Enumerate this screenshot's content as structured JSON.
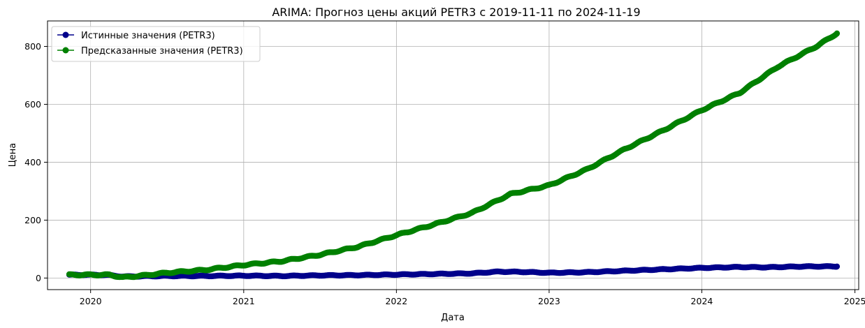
{
  "chart_data": {
    "type": "line",
    "title": "ARIMA: Прогноз цены акций PETR3 с 2019-11-11 по 2024-11-19",
    "xlabel": "Дата",
    "ylabel": "Цена",
    "xlim": [
      "2019-09-20",
      "2025-01-10"
    ],
    "ylim": [
      -40,
      888
    ],
    "x_ticks": [
      {
        "date": "2020-01-01",
        "label": "2020"
      },
      {
        "date": "2021-01-01",
        "label": "2021"
      },
      {
        "date": "2022-01-01",
        "label": "2022"
      },
      {
        "date": "2023-01-01",
        "label": "2023"
      },
      {
        "date": "2024-01-01",
        "label": "2024"
      },
      {
        "date": "2025-01-01",
        "label": "2025"
      }
    ],
    "y_ticks": [
      0,
      200,
      400,
      600,
      800
    ],
    "grid": true,
    "legend_position": "top-left",
    "series": [
      {
        "name": "Истинные значения (PETR3)",
        "color": "#00008b",
        "points": [
          [
            "2019-11-11",
            11
          ],
          [
            "2019-12-15",
            11
          ],
          [
            "2020-01-15",
            11
          ],
          [
            "2020-02-15",
            10
          ],
          [
            "2020-03-18",
            5
          ],
          [
            "2020-05-01",
            6
          ],
          [
            "2020-07-01",
            7
          ],
          [
            "2020-10-01",
            7
          ],
          [
            "2021-01-01",
            8
          ],
          [
            "2021-04-01",
            7
          ],
          [
            "2021-07-01",
            9
          ],
          [
            "2021-10-01",
            10
          ],
          [
            "2022-01-01",
            12
          ],
          [
            "2022-04-01",
            14
          ],
          [
            "2022-07-01",
            16
          ],
          [
            "2022-09-01",
            22
          ],
          [
            "2022-11-01",
            21
          ],
          [
            "2023-01-01",
            18
          ],
          [
            "2023-04-01",
            20
          ],
          [
            "2023-07-01",
            25
          ],
          [
            "2023-10-01",
            30
          ],
          [
            "2024-01-01",
            35
          ],
          [
            "2024-04-01",
            38
          ],
          [
            "2024-06-01",
            37
          ],
          [
            "2024-09-01",
            40
          ],
          [
            "2024-11-19",
            40
          ]
        ]
      },
      {
        "name": "Предсказанные значения (PETR3)",
        "color": "#008000",
        "points": [
          [
            "2019-11-11",
            11
          ],
          [
            "2019-12-15",
            11
          ],
          [
            "2020-01-15",
            11
          ],
          [
            "2020-02-15",
            11
          ],
          [
            "2020-03-18",
            2
          ],
          [
            "2020-05-01",
            8
          ],
          [
            "2020-07-01",
            18
          ],
          [
            "2020-10-01",
            28
          ],
          [
            "2021-01-01",
            45
          ],
          [
            "2021-04-01",
            58
          ],
          [
            "2021-07-01",
            80
          ],
          [
            "2021-10-01",
            108
          ],
          [
            "2022-01-01",
            148
          ],
          [
            "2022-04-01",
            185
          ],
          [
            "2022-07-01",
            225
          ],
          [
            "2022-10-01",
            290
          ],
          [
            "2023-01-01",
            320
          ],
          [
            "2023-04-01",
            375
          ],
          [
            "2023-07-01",
            445
          ],
          [
            "2023-10-01",
            510
          ],
          [
            "2024-01-01",
            580
          ],
          [
            "2024-04-01",
            640
          ],
          [
            "2024-07-01",
            730
          ],
          [
            "2024-10-01",
            800
          ],
          [
            "2024-11-19",
            845
          ]
        ]
      }
    ]
  }
}
